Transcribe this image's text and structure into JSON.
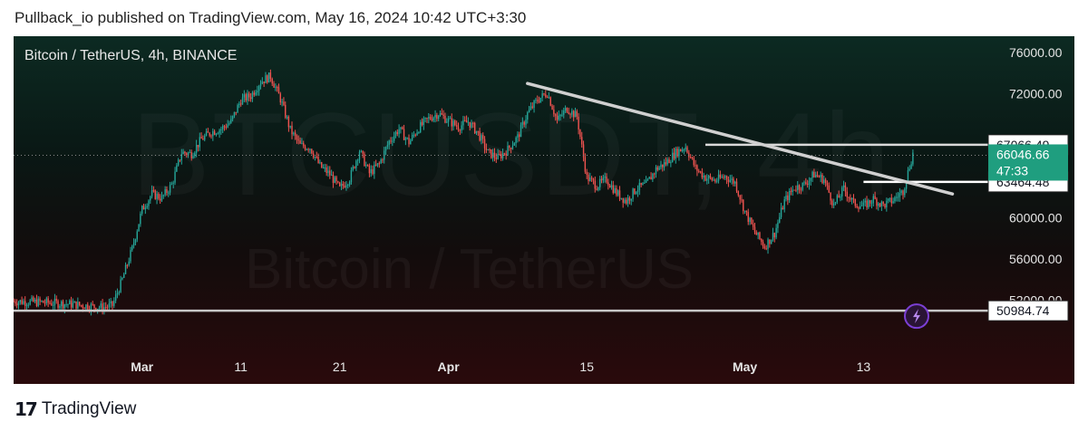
{
  "header": {
    "text": "Pullback_io published on TradingView.com, May 16, 2024 10:42 UTC+3:30"
  },
  "footer": {
    "logo_glyph": "17",
    "brand": "TradingView"
  },
  "chart_data": {
    "type": "candlestick",
    "title": "Bitcoin / TetherUS, 4h, BINANCE",
    "watermark_symbol": "BTCUSDT, 4h",
    "watermark_name": "Bitcoin / TetherUS",
    "ylim": [
      49000,
      78000
    ],
    "y_ticks": [
      {
        "value": 76000,
        "label": "76000.00"
      },
      {
        "value": 72000,
        "label": "72000.00"
      },
      {
        "value": 60000,
        "label": "60000.00"
      },
      {
        "value": 56000,
        "label": "56000.00"
      },
      {
        "value": 52000,
        "label": "52000.00"
      }
    ],
    "x_ticks": [
      {
        "day": 29,
        "label": "Mar",
        "bold": true
      },
      {
        "day": 39,
        "label": "11",
        "bold": false
      },
      {
        "day": 49,
        "label": "21",
        "bold": false
      },
      {
        "day": 60,
        "label": "Apr",
        "bold": true
      },
      {
        "day": 74,
        "label": "15",
        "bold": false
      },
      {
        "day": 90,
        "label": "May",
        "bold": true
      },
      {
        "day": 102,
        "label": "13",
        "bold": false
      }
    ],
    "x_range_days": [
      16,
      120
    ],
    "price_path": [
      [
        16,
        51900
      ],
      [
        19,
        51800
      ],
      [
        22,
        51600
      ],
      [
        25,
        51300
      ],
      [
        26,
        51500
      ],
      [
        27,
        54000
      ],
      [
        28,
        57000
      ],
      [
        29,
        60800
      ],
      [
        30,
        62300
      ],
      [
        31,
        61900
      ],
      [
        32,
        63200
      ],
      [
        33,
        66300
      ],
      [
        34,
        66200
      ],
      [
        35,
        67600
      ],
      [
        36,
        68300
      ],
      [
        37,
        68600
      ],
      [
        38,
        69300
      ],
      [
        39,
        71400
      ],
      [
        40,
        71800
      ],
      [
        41,
        73200
      ],
      [
        42,
        73700
      ],
      [
        43,
        71500
      ],
      [
        44,
        68500
      ],
      [
        45,
        67000
      ],
      [
        46,
        66800
      ],
      [
        47,
        65000
      ],
      [
        48,
        64200
      ],
      [
        49,
        62800
      ],
      [
        50,
        63800
      ],
      [
        51,
        66500
      ],
      [
        52,
        64300
      ],
      [
        53,
        65200
      ],
      [
        54,
        67400
      ],
      [
        55,
        68600
      ],
      [
        56,
        67300
      ],
      [
        57,
        68700
      ],
      [
        58,
        69600
      ],
      [
        59,
        70100
      ],
      [
        60,
        69400
      ],
      [
        61,
        68800
      ],
      [
        62,
        69300
      ],
      [
        63,
        68200
      ],
      [
        64,
        66300
      ],
      [
        65,
        65800
      ],
      [
        66,
        66600
      ],
      [
        67,
        67800
      ],
      [
        68,
        70100
      ],
      [
        69,
        71400
      ],
      [
        70,
        72100
      ],
      [
        71,
        69400
      ],
      [
        72,
        70600
      ],
      [
        73,
        69800
      ],
      [
        74,
        63900
      ],
      [
        75,
        63100
      ],
      [
        76,
        63700
      ],
      [
        77,
        62400
      ],
      [
        78,
        61600
      ],
      [
        79,
        62800
      ],
      [
        80,
        63200
      ],
      [
        81,
        64700
      ],
      [
        82,
        65300
      ],
      [
        83,
        66300
      ],
      [
        84,
        66900
      ],
      [
        85,
        64800
      ],
      [
        86,
        63900
      ],
      [
        87,
        63600
      ],
      [
        88,
        64000
      ],
      [
        89,
        63400
      ],
      [
        90,
        60600
      ],
      [
        91,
        58600
      ],
      [
        92,
        57200
      ],
      [
        93,
        58500
      ],
      [
        94,
        61600
      ],
      [
        95,
        62900
      ],
      [
        96,
        63200
      ],
      [
        97,
        64200
      ],
      [
        98,
        63700
      ],
      [
        99,
        61200
      ],
      [
        100,
        62800
      ],
      [
        101,
        61400
      ],
      [
        102,
        61100
      ],
      [
        103,
        61800
      ],
      [
        104,
        61200
      ],
      [
        105,
        61700
      ],
      [
        106,
        62600
      ],
      [
        107,
        66200
      ]
    ],
    "current_price": {
      "value": 66046.66,
      "label": "66046.66",
      "countdown": "47:33"
    },
    "horizontal_levels": [
      {
        "value": 67066.49,
        "label": "67066.49",
        "from_day": 86,
        "color": "#d9d9d9"
      },
      {
        "value": 63464.48,
        "label": "63464.48",
        "from_day": 102,
        "color": "#ffffff"
      },
      {
        "value": 50984.74,
        "label": "50984.74",
        "from_day": 16,
        "color": "#c8c8c8"
      }
    ],
    "trendline": {
      "start": {
        "day": 68,
        "value": 73000
      },
      "end": {
        "day": 111,
        "value": 62300
      },
      "color": "#d0d0d0"
    },
    "colors": {
      "up": "#26a69a",
      "down": "#ef5350",
      "current_label_bg": "#1f9e7f",
      "badge": "#7b3fd4"
    }
  }
}
